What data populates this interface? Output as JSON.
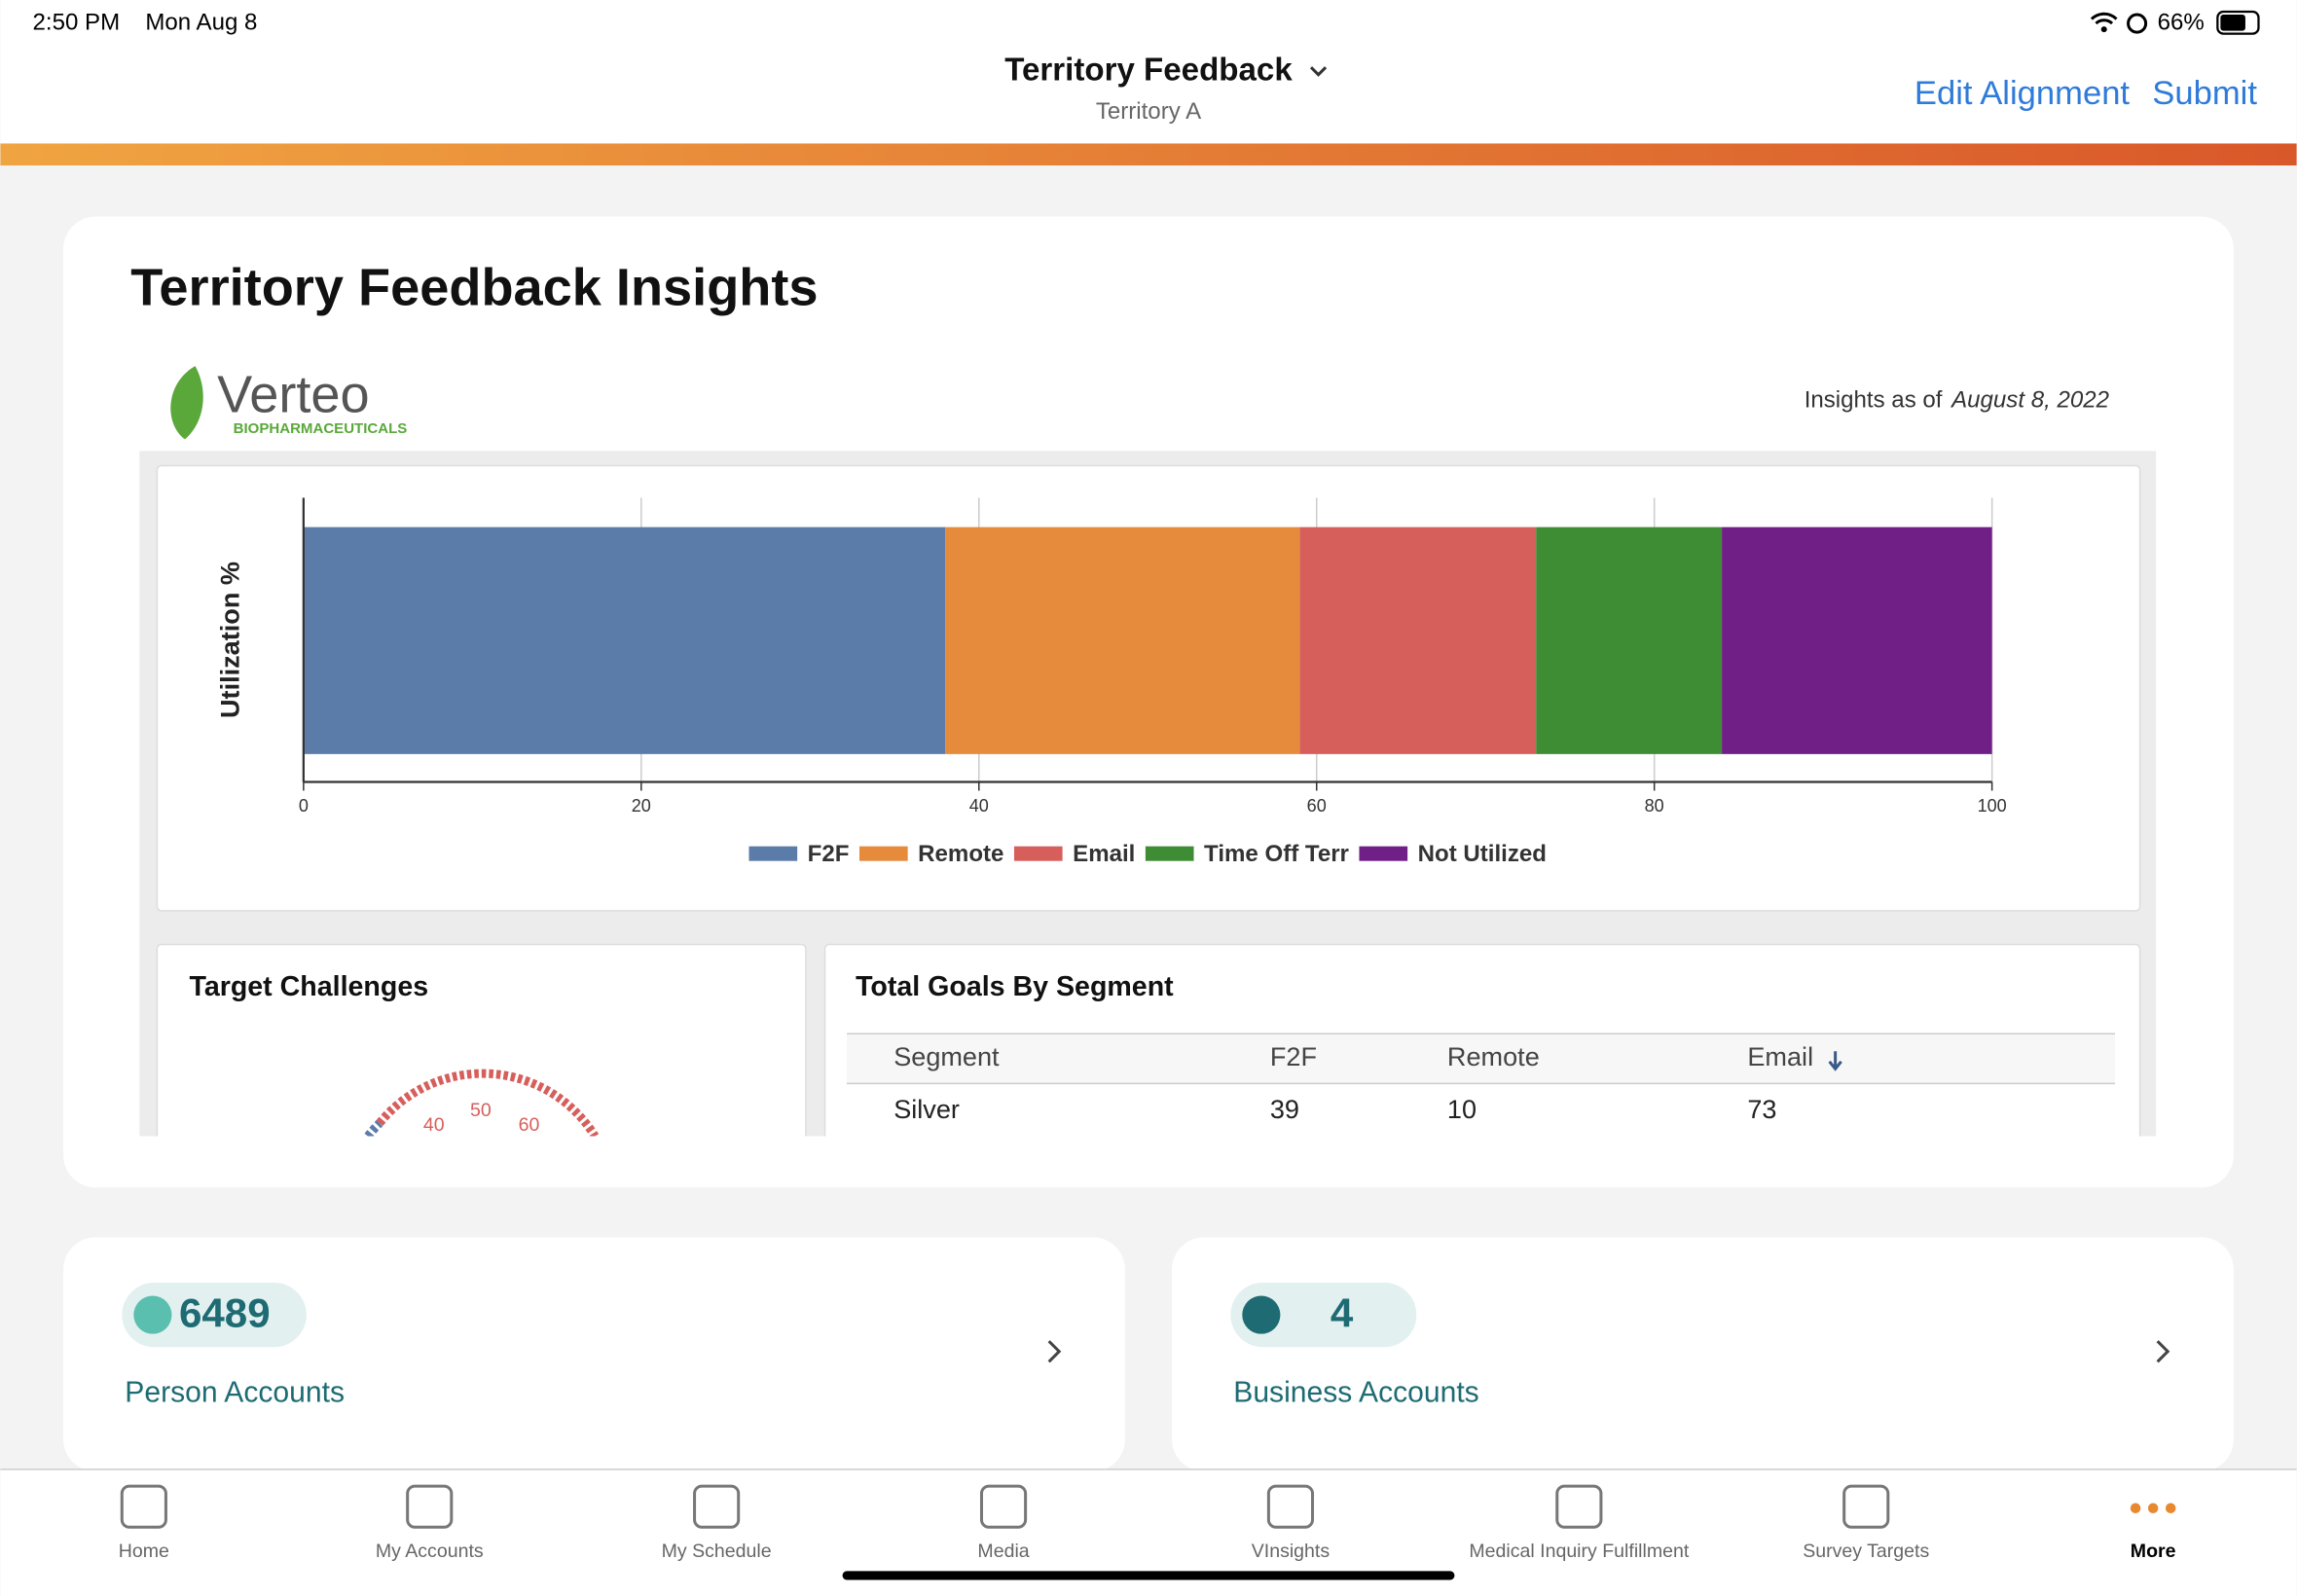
{
  "status_bar": {
    "time": "2:50 PM",
    "date": "Mon Aug 8",
    "battery": "66%"
  },
  "header": {
    "title": "Territory Feedback",
    "subtitle": "Territory A",
    "actions": [
      "Edit Alignment",
      "Submit"
    ]
  },
  "insights": {
    "title": "Territory Feedback Insights",
    "logo": {
      "name": "Verteo",
      "tagline": "BIOPHARMACEUTICALS"
    },
    "as_of_label": "Insights as of",
    "as_of_date": "August 8, 2022"
  },
  "chart_data": {
    "type": "bar",
    "orientation": "horizontal",
    "stacked": true,
    "y_label": "Utilization %",
    "categories": [
      null
    ],
    "series": [
      {
        "name": "F2F",
        "color": "#5b7ca8",
        "values": [
          38
        ]
      },
      {
        "name": "Remote",
        "color": "#e68a3b",
        "values": [
          21
        ]
      },
      {
        "name": "Email",
        "color": "#d65f5c",
        "values": [
          14
        ]
      },
      {
        "name": "Time Off Terr",
        "color": "#3e8c33",
        "values": [
          11
        ]
      },
      {
        "name": "Not Utilized",
        "color": "#6f1f86",
        "values": [
          16
        ]
      }
    ],
    "xlim": [
      0,
      100
    ],
    "xticks": [
      0,
      20,
      40,
      60,
      80,
      100
    ],
    "grid": true,
    "legend": "bottom"
  },
  "target_challenges": {
    "title": "Target Challenges",
    "gauge_ticks": [
      40,
      50,
      60
    ]
  },
  "goals_table": {
    "title": "Total Goals By Segment",
    "columns": [
      "Segment",
      "F2F",
      "Remote",
      "Email"
    ],
    "rows": [
      [
        "Silver",
        39,
        10,
        73
      ]
    ]
  },
  "tiles": [
    {
      "count": 6489,
      "label": "Person Accounts"
    },
    {
      "count": 4,
      "label": "Business Accounts"
    }
  ],
  "nav": [
    "Home",
    "My Accounts",
    "My Schedule",
    "Media",
    "VInsights",
    "Medical Inquiry Fulfillment",
    "Survey Targets",
    "More"
  ]
}
